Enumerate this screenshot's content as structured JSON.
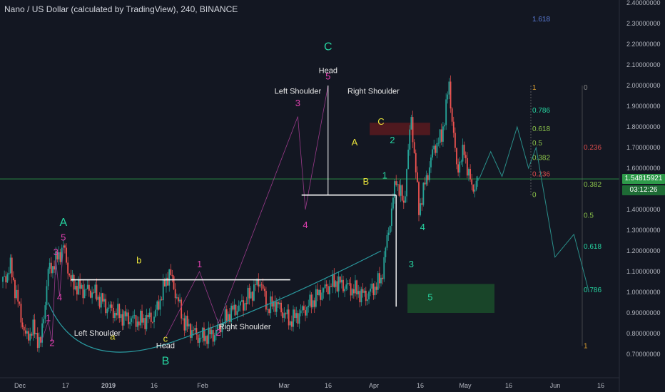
{
  "header": {
    "title": "Nano / US Dollar (calculated by TradingView), 240, BINANCE"
  },
  "price_tags": {
    "last_price": "1.54815921",
    "countdown": "03:12:26"
  },
  "colors": {
    "background": "#131722",
    "candle_up": "#26a69a",
    "candle_down": "#ef5350",
    "wave_label_pink": "#e040b0",
    "wave_label_teal": "#26d4a0",
    "wave_label_yellow": "#e8e23a",
    "fib_red": "#d94b4b",
    "fib_green": "#8bc34a",
    "fib_teal": "#26d4a0",
    "price_line": "#2e9a4a",
    "support_zone": "#1b4d2a",
    "resistance_zone": "#5a1a1f"
  },
  "chart_data": {
    "type": "line",
    "title": "Nano / US Dollar (calculated by TradingView), 240, BINANCE",
    "y_axis": {
      "ticks": [
        "0.70000000",
        "0.80000000",
        "0.90000000",
        "1.00000000",
        "1.10000000",
        "1.20000000",
        "1.30000000",
        "1.40000000",
        "1.50000000",
        "1.60000000",
        "1.70000000",
        "1.80000000",
        "1.90000000",
        "2.00000000",
        "2.10000000",
        "2.20000000",
        "2.30000000",
        "2.40000000"
      ],
      "range": [
        0.66,
        2.42
      ]
    },
    "x_axis": {
      "ticks": [
        "Dec",
        "17",
        "2019",
        "16",
        "Feb",
        "Mar",
        "16",
        "Apr",
        "16",
        "May",
        "16",
        "Jun",
        "16"
      ]
    },
    "price_series": [
      {
        "t": 0,
        "p": 1.05
      },
      {
        "t": 2,
        "p": 1.12
      },
      {
        "t": 4,
        "p": 0.95
      },
      {
        "t": 6,
        "p": 0.78
      },
      {
        "t": 8,
        "p": 0.82
      },
      {
        "t": 10,
        "p": 0.75
      },
      {
        "t": 12,
        "p": 1.1
      },
      {
        "t": 14,
        "p": 1.15
      },
      {
        "t": 16,
        "p": 1.22
      },
      {
        "t": 18,
        "p": 1.05
      },
      {
        "t": 20,
        "p": 1.02
      },
      {
        "t": 24,
        "p": 1.0
      },
      {
        "t": 28,
        "p": 0.92
      },
      {
        "t": 32,
        "p": 0.88
      },
      {
        "t": 36,
        "p": 0.86
      },
      {
        "t": 40,
        "p": 0.88
      },
      {
        "t": 44,
        "p": 1.1
      },
      {
        "t": 48,
        "p": 0.85
      },
      {
        "t": 52,
        "p": 0.78
      },
      {
        "t": 56,
        "p": 0.8
      },
      {
        "t": 60,
        "p": 0.9
      },
      {
        "t": 64,
        "p": 0.95
      },
      {
        "t": 68,
        "p": 1.06
      },
      {
        "t": 70,
        "p": 0.92
      },
      {
        "t": 72,
        "p": 0.95
      },
      {
        "t": 76,
        "p": 0.86
      },
      {
        "t": 80,
        "p": 0.92
      },
      {
        "t": 84,
        "p": 1.0
      },
      {
        "t": 88,
        "p": 1.05
      },
      {
        "t": 92,
        "p": 1.02
      },
      {
        "t": 96,
        "p": 0.98
      },
      {
        "t": 100,
        "p": 1.06
      },
      {
        "t": 102,
        "p": 1.3
      },
      {
        "t": 104,
        "p": 1.55
      },
      {
        "t": 106,
        "p": 1.42
      },
      {
        "t": 108,
        "p": 1.85
      },
      {
        "t": 110,
        "p": 1.4
      },
      {
        "t": 112,
        "p": 1.55
      },
      {
        "t": 114,
        "p": 1.7
      },
      {
        "t": 116,
        "p": 1.75
      },
      {
        "t": 118,
        "p": 2.0
      },
      {
        "t": 120,
        "p": 1.6
      },
      {
        "t": 122,
        "p": 1.68
      },
      {
        "t": 124,
        "p": 1.5
      },
      {
        "t": 126,
        "p": 1.55
      }
    ],
    "projection_path": [
      {
        "t": 126,
        "p": 1.55
      },
      {
        "t": 129,
        "p": 1.68
      },
      {
        "t": 132,
        "p": 1.56
      },
      {
        "t": 136,
        "p": 1.8
      },
      {
        "t": 139,
        "p": 1.6
      },
      {
        "t": 141,
        "p": 1.7
      },
      {
        "t": 146,
        "p": 1.17
      },
      {
        "t": 151,
        "p": 1.28
      },
      {
        "t": 155,
        "p": 1.0
      }
    ],
    "fib_levels_left": [
      {
        "label": "1.618",
        "price": 2.32
      },
      {
        "label": "1",
        "price": 1.99
      },
      {
        "label": "0.786",
        "price": 1.88
      },
      {
        "label": "0.618",
        "price": 1.79
      },
      {
        "label": "0.5",
        "price": 1.72
      },
      {
        "label": "0.382",
        "price": 1.65
      },
      {
        "label": "0.236",
        "price": 1.57
      },
      {
        "label": "0",
        "price": 1.47
      }
    ],
    "fib_levels_right": [
      {
        "label": "0",
        "price": 1.99
      },
      {
        "label": "0.236",
        "price": 1.7
      },
      {
        "label": "0.382",
        "price": 1.52
      },
      {
        "label": "0.5",
        "price": 1.37
      },
      {
        "label": "0.618",
        "price": 1.22
      },
      {
        "label": "0.786",
        "price": 1.01
      },
      {
        "label": "1",
        "price": 0.74
      }
    ],
    "wave_labels": [
      {
        "text": "A",
        "t": 16,
        "p": 1.32,
        "color": "teal"
      },
      {
        "text": "5",
        "t": 16,
        "p": 1.25,
        "color": "pink"
      },
      {
        "text": "3",
        "t": 14,
        "p": 1.18,
        "color": "pink"
      },
      {
        "text": "4",
        "t": 15,
        "p": 0.96,
        "color": "pink"
      },
      {
        "text": "1",
        "t": 12,
        "p": 0.86,
        "color": "pink"
      },
      {
        "text": "2",
        "t": 13,
        "p": 0.74,
        "color": "pink"
      },
      {
        "text": "b",
        "t": 36,
        "p": 1.14,
        "color": "yellow"
      },
      {
        "text": "a",
        "t": 29,
        "p": 0.77,
        "color": "yellow"
      },
      {
        "text": "c",
        "t": 43,
        "p": 0.76,
        "color": "yellow"
      },
      {
        "text": "B",
        "t": 43,
        "p": 0.65,
        "color": "teal"
      },
      {
        "text": "1",
        "t": 52,
        "p": 1.12,
        "color": "pink"
      },
      {
        "text": "2",
        "t": 57,
        "p": 0.79,
        "color": "pink"
      },
      {
        "text": "3",
        "t": 78,
        "p": 1.9,
        "color": "pink"
      },
      {
        "text": "4",
        "t": 80,
        "p": 1.31,
        "color": "pink"
      },
      {
        "text": "5",
        "t": 86,
        "p": 2.03,
        "color": "pink"
      },
      {
        "text": "C",
        "t": 86,
        "p": 2.17,
        "color": "teal"
      },
      {
        "text": "A",
        "t": 93,
        "p": 1.71,
        "color": "yellow"
      },
      {
        "text": "B",
        "t": 96,
        "p": 1.52,
        "color": "yellow"
      },
      {
        "text": "C",
        "t": 100,
        "p": 1.81,
        "color": "yellow"
      },
      {
        "text": "1",
        "t": 101,
        "p": 1.55,
        "color": "teal"
      },
      {
        "text": "2",
        "t": 103,
        "p": 1.72,
        "color": "teal"
      },
      {
        "text": "3",
        "t": 108,
        "p": 1.12,
        "color": "teal"
      },
      {
        "text": "4",
        "t": 111,
        "p": 1.3,
        "color": "teal"
      },
      {
        "text": "5",
        "t": 113,
        "p": 0.96,
        "color": "teal"
      }
    ],
    "annotations": [
      {
        "text": "Left Shoulder",
        "t": 25,
        "p": 0.79
      },
      {
        "text": "Head",
        "t": 43,
        "p": 0.73
      },
      {
        "text": "Right Shoulder",
        "t": 64,
        "p": 0.82
      },
      {
        "text": "Left Shoulder",
        "t": 78,
        "p": 1.96
      },
      {
        "text": "Head",
        "t": 86,
        "p": 2.06
      },
      {
        "text": "Right Shoulder",
        "t": 98,
        "p": 1.96
      }
    ],
    "necklines": [
      {
        "price": 1.06,
        "t_from": 18,
        "t_to": 76
      },
      {
        "price": 1.47,
        "t_from": 79,
        "t_to": 104
      }
    ],
    "last_price": 1.548,
    "grid": false,
    "legend": "none"
  }
}
